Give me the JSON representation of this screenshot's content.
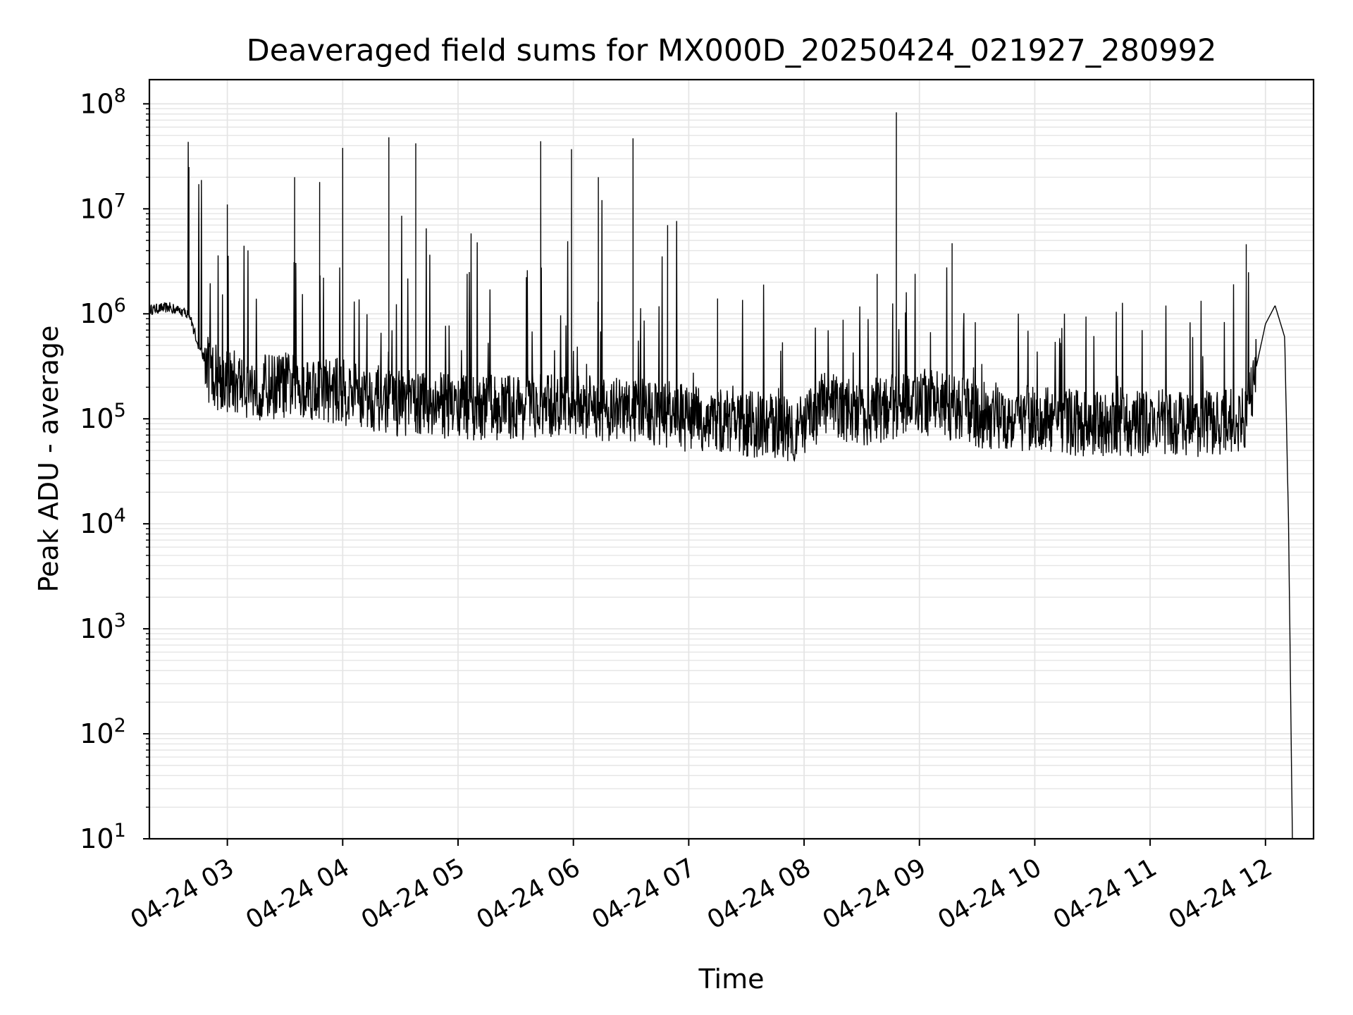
{
  "chart_data": {
    "type": "line",
    "title": "Deaveraged field sums for MX000D_20250424_021927_280992",
    "xlabel": "Time",
    "ylabel": "Peak ADU - average",
    "x_range": [
      "04-24 02:19:27",
      "04-24 12:25:00"
    ],
    "y_range": [
      10,
      170000000
    ],
    "y_scale": "log",
    "grid": true,
    "x_tick_labels": [
      "04-24 03",
      "04-24 04",
      "04-24 05",
      "04-24 06",
      "04-24 07",
      "04-24 08",
      "04-24 09",
      "04-24 10",
      "04-24 11",
      "04-24 12"
    ],
    "x_tick_hours": [
      3,
      4,
      5,
      6,
      7,
      8,
      9,
      10,
      11,
      12
    ],
    "y_tick_exponents": [
      1,
      2,
      3,
      4,
      5,
      6,
      7,
      8
    ],
    "line_color": "#000000",
    "grid_color": "#e5e5e5",
    "series": [
      {
        "x": [
          "04-24 02:20",
          "04-24 02:30",
          "04-24 02:40",
          "04-24 02:45",
          "04-24 02:50",
          "04-24 02:55",
          "04-24 03:00",
          "04-24 03:15",
          "04-24 03:30",
          "04-24 03:45",
          "04-24 04:00",
          "04-24 04:15",
          "04-24 04:30",
          "04-24 04:45",
          "04-24 05:00",
          "04-24 05:30",
          "04-24 06:00",
          "04-24 06:30",
          "04-24 06:50",
          "04-24 07:00",
          "04-24 07:30",
          "04-24 08:00",
          "04-24 08:10",
          "04-24 08:30",
          "04-24 09:00",
          "04-24 09:30",
          "04-24 10:00",
          "04-24 10:30",
          "04-24 11:00",
          "04-24 11:30",
          "04-24 11:50",
          "04-24 11:55",
          "04-24 12:00",
          "04-24 12:05",
          "04-24 12:10",
          "04-24 12:12",
          "04-24 12:14"
        ],
        "y": [
          1100000,
          1150000,
          1000000,
          500000,
          300000,
          250000,
          230000,
          200000,
          210000,
          200000,
          180000,
          160000,
          140000,
          140000,
          130000,
          130000,
          130000,
          120000,
          110000,
          100000,
          90000,
          80000,
          140000,
          110000,
          150000,
          110000,
          100000,
          90000,
          90000,
          90000,
          100000,
          300000,
          800000,
          1200000,
          600000,
          10000,
          10
        ]
      }
    ],
    "spikes": [
      {
        "x": "04-24 02:40",
        "y": 25000000
      },
      {
        "x": "04-24 03:00",
        "y": 11000000
      },
      {
        "x": "04-24 03:35",
        "y": 20000000
      },
      {
        "x": "04-24 03:48",
        "y": 18000000
      },
      {
        "x": "04-24 04:00",
        "y": 38000000
      },
      {
        "x": "04-24 04:24",
        "y": 48000000
      },
      {
        "x": "04-24 04:38",
        "y": 42000000
      },
      {
        "x": "04-24 05:43",
        "y": 44000000
      },
      {
        "x": "04-24 05:59",
        "y": 37000000
      },
      {
        "x": "04-24 06:13",
        "y": 20000000
      },
      {
        "x": "04-24 06:31",
        "y": 47000000
      },
      {
        "x": "04-24 06:49",
        "y": 7000000
      },
      {
        "x": "04-24 07:15",
        "y": 1400000
      },
      {
        "x": "04-24 08:38",
        "y": 2400000
      },
      {
        "x": "04-24 08:48",
        "y": 83000000
      },
      {
        "x": "04-24 09:17",
        "y": 4700000
      },
      {
        "x": "04-24 11:50",
        "y": 4600000
      }
    ]
  }
}
